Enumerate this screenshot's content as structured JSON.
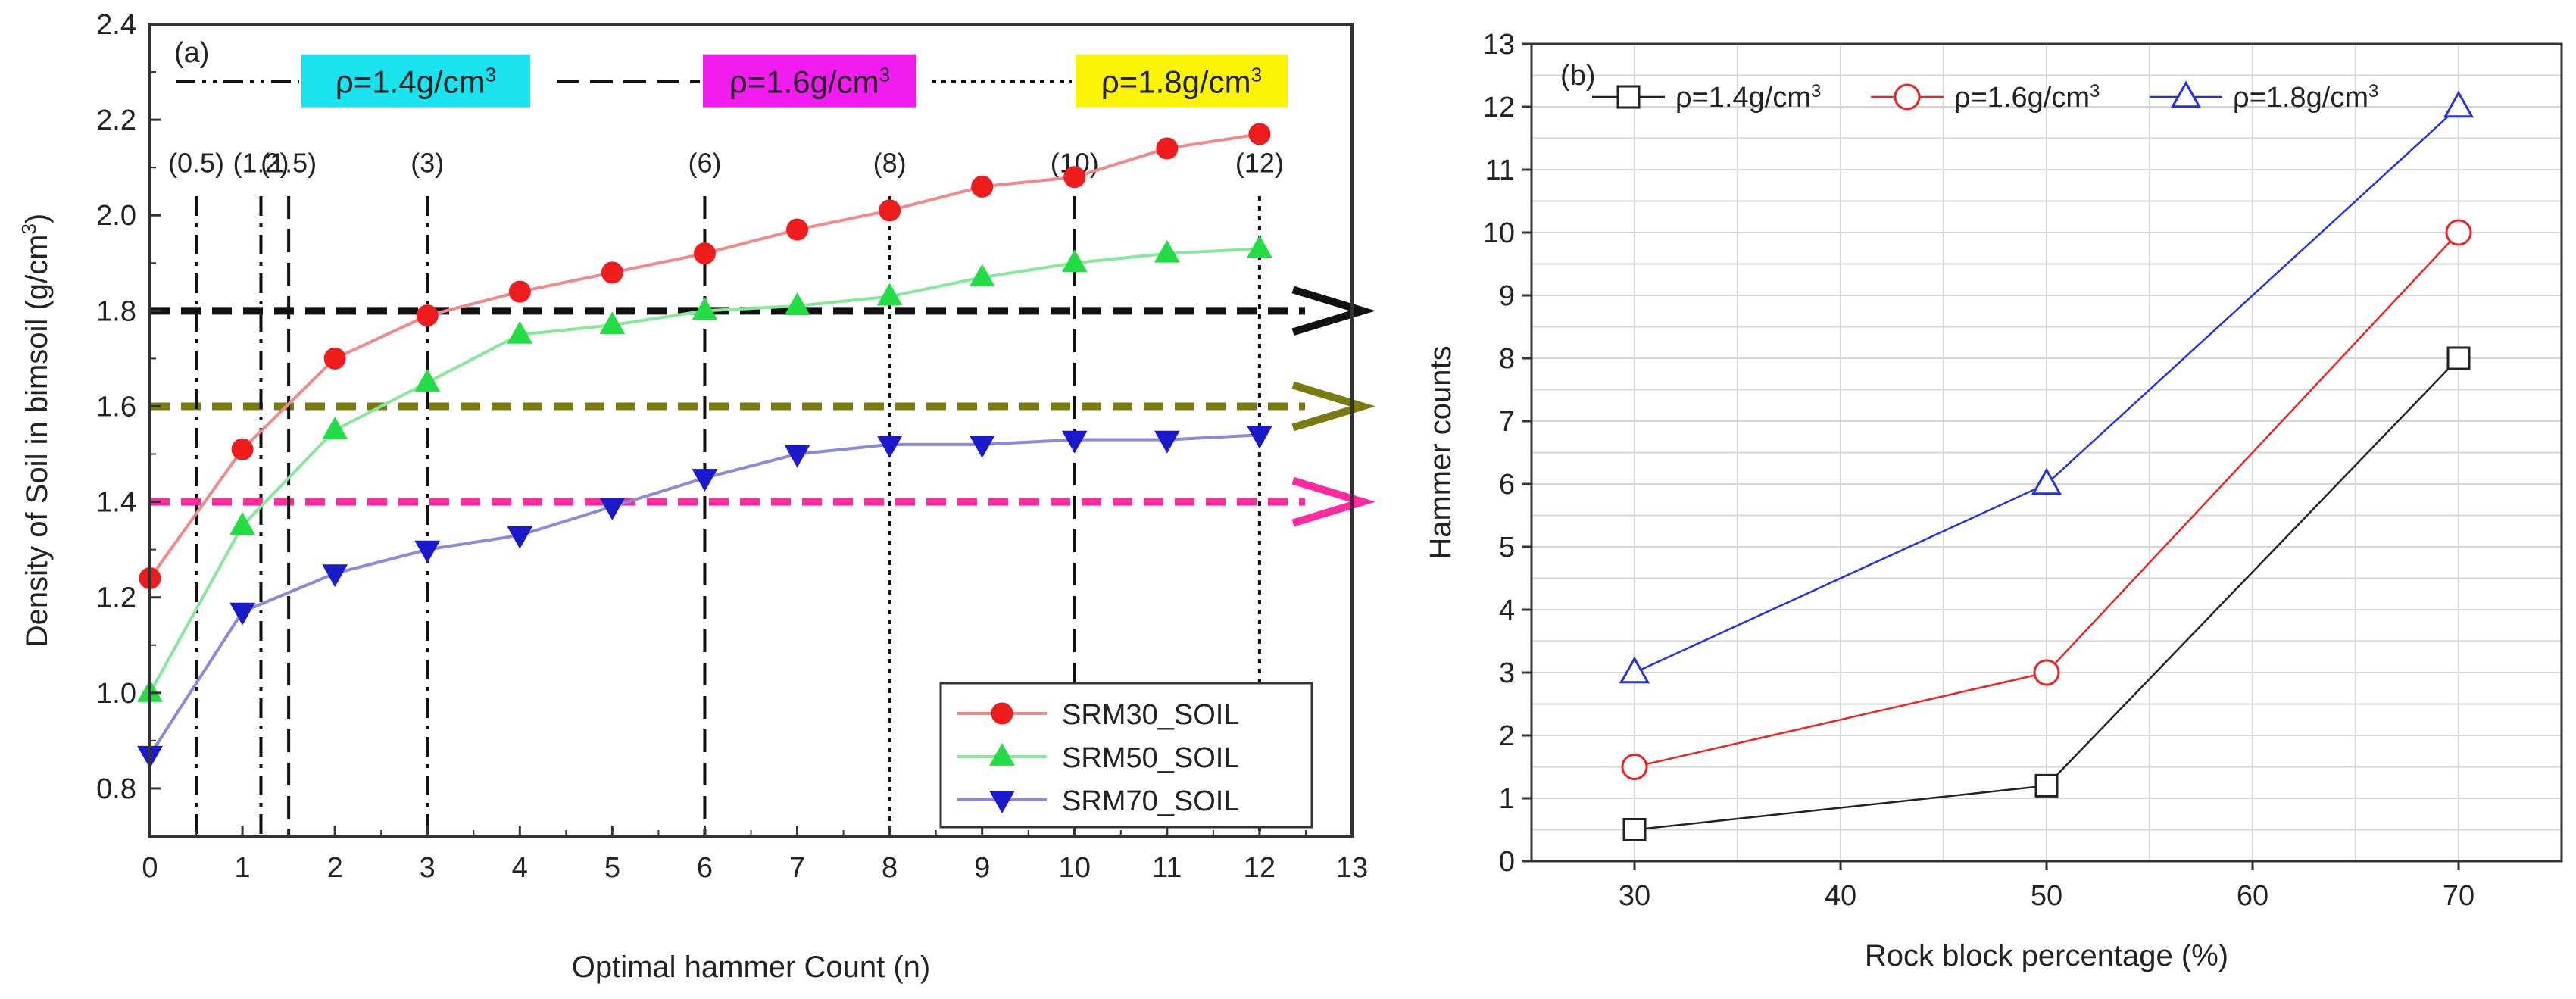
{
  "chart_data": [
    {
      "panel": "(a)",
      "type": "line",
      "xlabel": "Optimal hammer Count (n)",
      "ylabel": "Density of Soil in bimsoil (g/cm",
      "ylabel_sup": "3",
      "ylabel_close": ")",
      "xlim": [
        0,
        13
      ],
      "ylim": [
        0.7,
        2.4
      ],
      "xticks": [
        "0",
        "1",
        "2",
        "3",
        "4",
        "5",
        "6",
        "7",
        "8",
        "9",
        "10",
        "11",
        "12",
        "13"
      ],
      "yticks": [
        "0.8",
        "1.0",
        "1.2",
        "1.4",
        "1.6",
        "1.8",
        "2.0",
        "2.2",
        "2.4"
      ],
      "x": [
        0,
        1,
        2,
        3,
        4,
        5,
        6,
        7,
        8,
        9,
        10,
        11,
        12
      ],
      "series": [
        {
          "name": "SRM30_SOIL",
          "marker": "circle",
          "color": "#ee1c1c",
          "line_color": "#f08a8a",
          "values": [
            1.24,
            1.51,
            1.7,
            1.79,
            1.84,
            1.88,
            1.92,
            1.97,
            2.01,
            2.06,
            2.08,
            2.14,
            2.17
          ]
        },
        {
          "name": "SRM50_SOIL",
          "marker": "triangle-up",
          "color": "#22dd44",
          "line_color": "#88e899",
          "values": [
            1.0,
            1.35,
            1.55,
            1.65,
            1.75,
            1.77,
            1.8,
            1.81,
            1.83,
            1.87,
            1.9,
            1.92,
            1.93
          ]
        },
        {
          "name": "SRM70_SOIL",
          "marker": "triangle-down",
          "color": "#1a1acc",
          "line_color": "#8a8ad8",
          "values": [
            0.87,
            1.17,
            1.25,
            1.3,
            1.33,
            1.39,
            1.45,
            1.5,
            1.52,
            1.52,
            1.53,
            1.53,
            1.54
          ]
        }
      ],
      "density_lines": [
        {
          "value": 1.8,
          "color": "#111111"
        },
        {
          "value": 1.6,
          "color": "#7a7a10"
        },
        {
          "value": 1.4,
          "color": "#ff2aa0"
        }
      ],
      "count_lines": [
        {
          "x": 0.5,
          "label": "(0.5)",
          "style": "dash-dot"
        },
        {
          "x": 1.2,
          "label": "(1.2)",
          "style": "dash-dot"
        },
        {
          "x": 1.5,
          "label": "(1.5)",
          "style": "dash"
        },
        {
          "x": 3,
          "label": "(3)",
          "style": "dash-dot"
        },
        {
          "x": 6,
          "label": "(6)",
          "style": "dash"
        },
        {
          "x": 8,
          "label": "(8)",
          "style": "dot"
        },
        {
          "x": 10,
          "label": "(10)",
          "style": "dash"
        },
        {
          "x": 12,
          "label": "(12)",
          "style": "dot"
        }
      ],
      "density_legend": [
        {
          "label": "ρ=1.4g/cm",
          "sup": "3",
          "bg": "#19e3ef",
          "style": "dash-dot-dot"
        },
        {
          "label": "ρ=1.6g/cm",
          "sup": "3",
          "bg": "#f21cf0",
          "style": "dash"
        },
        {
          "label": "ρ=1.8g/cm",
          "sup": "3",
          "bg": "#fbf306",
          "style": "dot"
        }
      ]
    },
    {
      "panel": "(b)",
      "type": "line",
      "xlabel": "Rock block percentage (%)",
      "ylabel": "Hammer counts",
      "xlim": [
        25,
        75
      ],
      "ylim": [
        0,
        13
      ],
      "xticks": [
        "30",
        "40",
        "50",
        "60",
        "70"
      ],
      "yticks": [
        "0",
        "1",
        "2",
        "3",
        "4",
        "5",
        "6",
        "7",
        "8",
        "9",
        "10",
        "11",
        "12",
        "13"
      ],
      "x": [
        30,
        50,
        70
      ],
      "series": [
        {
          "name": "ρ=1.4g/cm",
          "sup": "3",
          "marker": "square",
          "color": "#222222",
          "values": [
            0.5,
            1.2,
            8
          ]
        },
        {
          "name": "ρ=1.6g/cm",
          "sup": "3",
          "marker": "circle",
          "color": "#ee2222",
          "values": [
            1.5,
            3,
            10
          ]
        },
        {
          "name": "ρ=1.8g/cm",
          "sup": "3",
          "marker": "triangle-up",
          "color": "#2233dd",
          "values": [
            3,
            6,
            12
          ]
        }
      ]
    }
  ]
}
